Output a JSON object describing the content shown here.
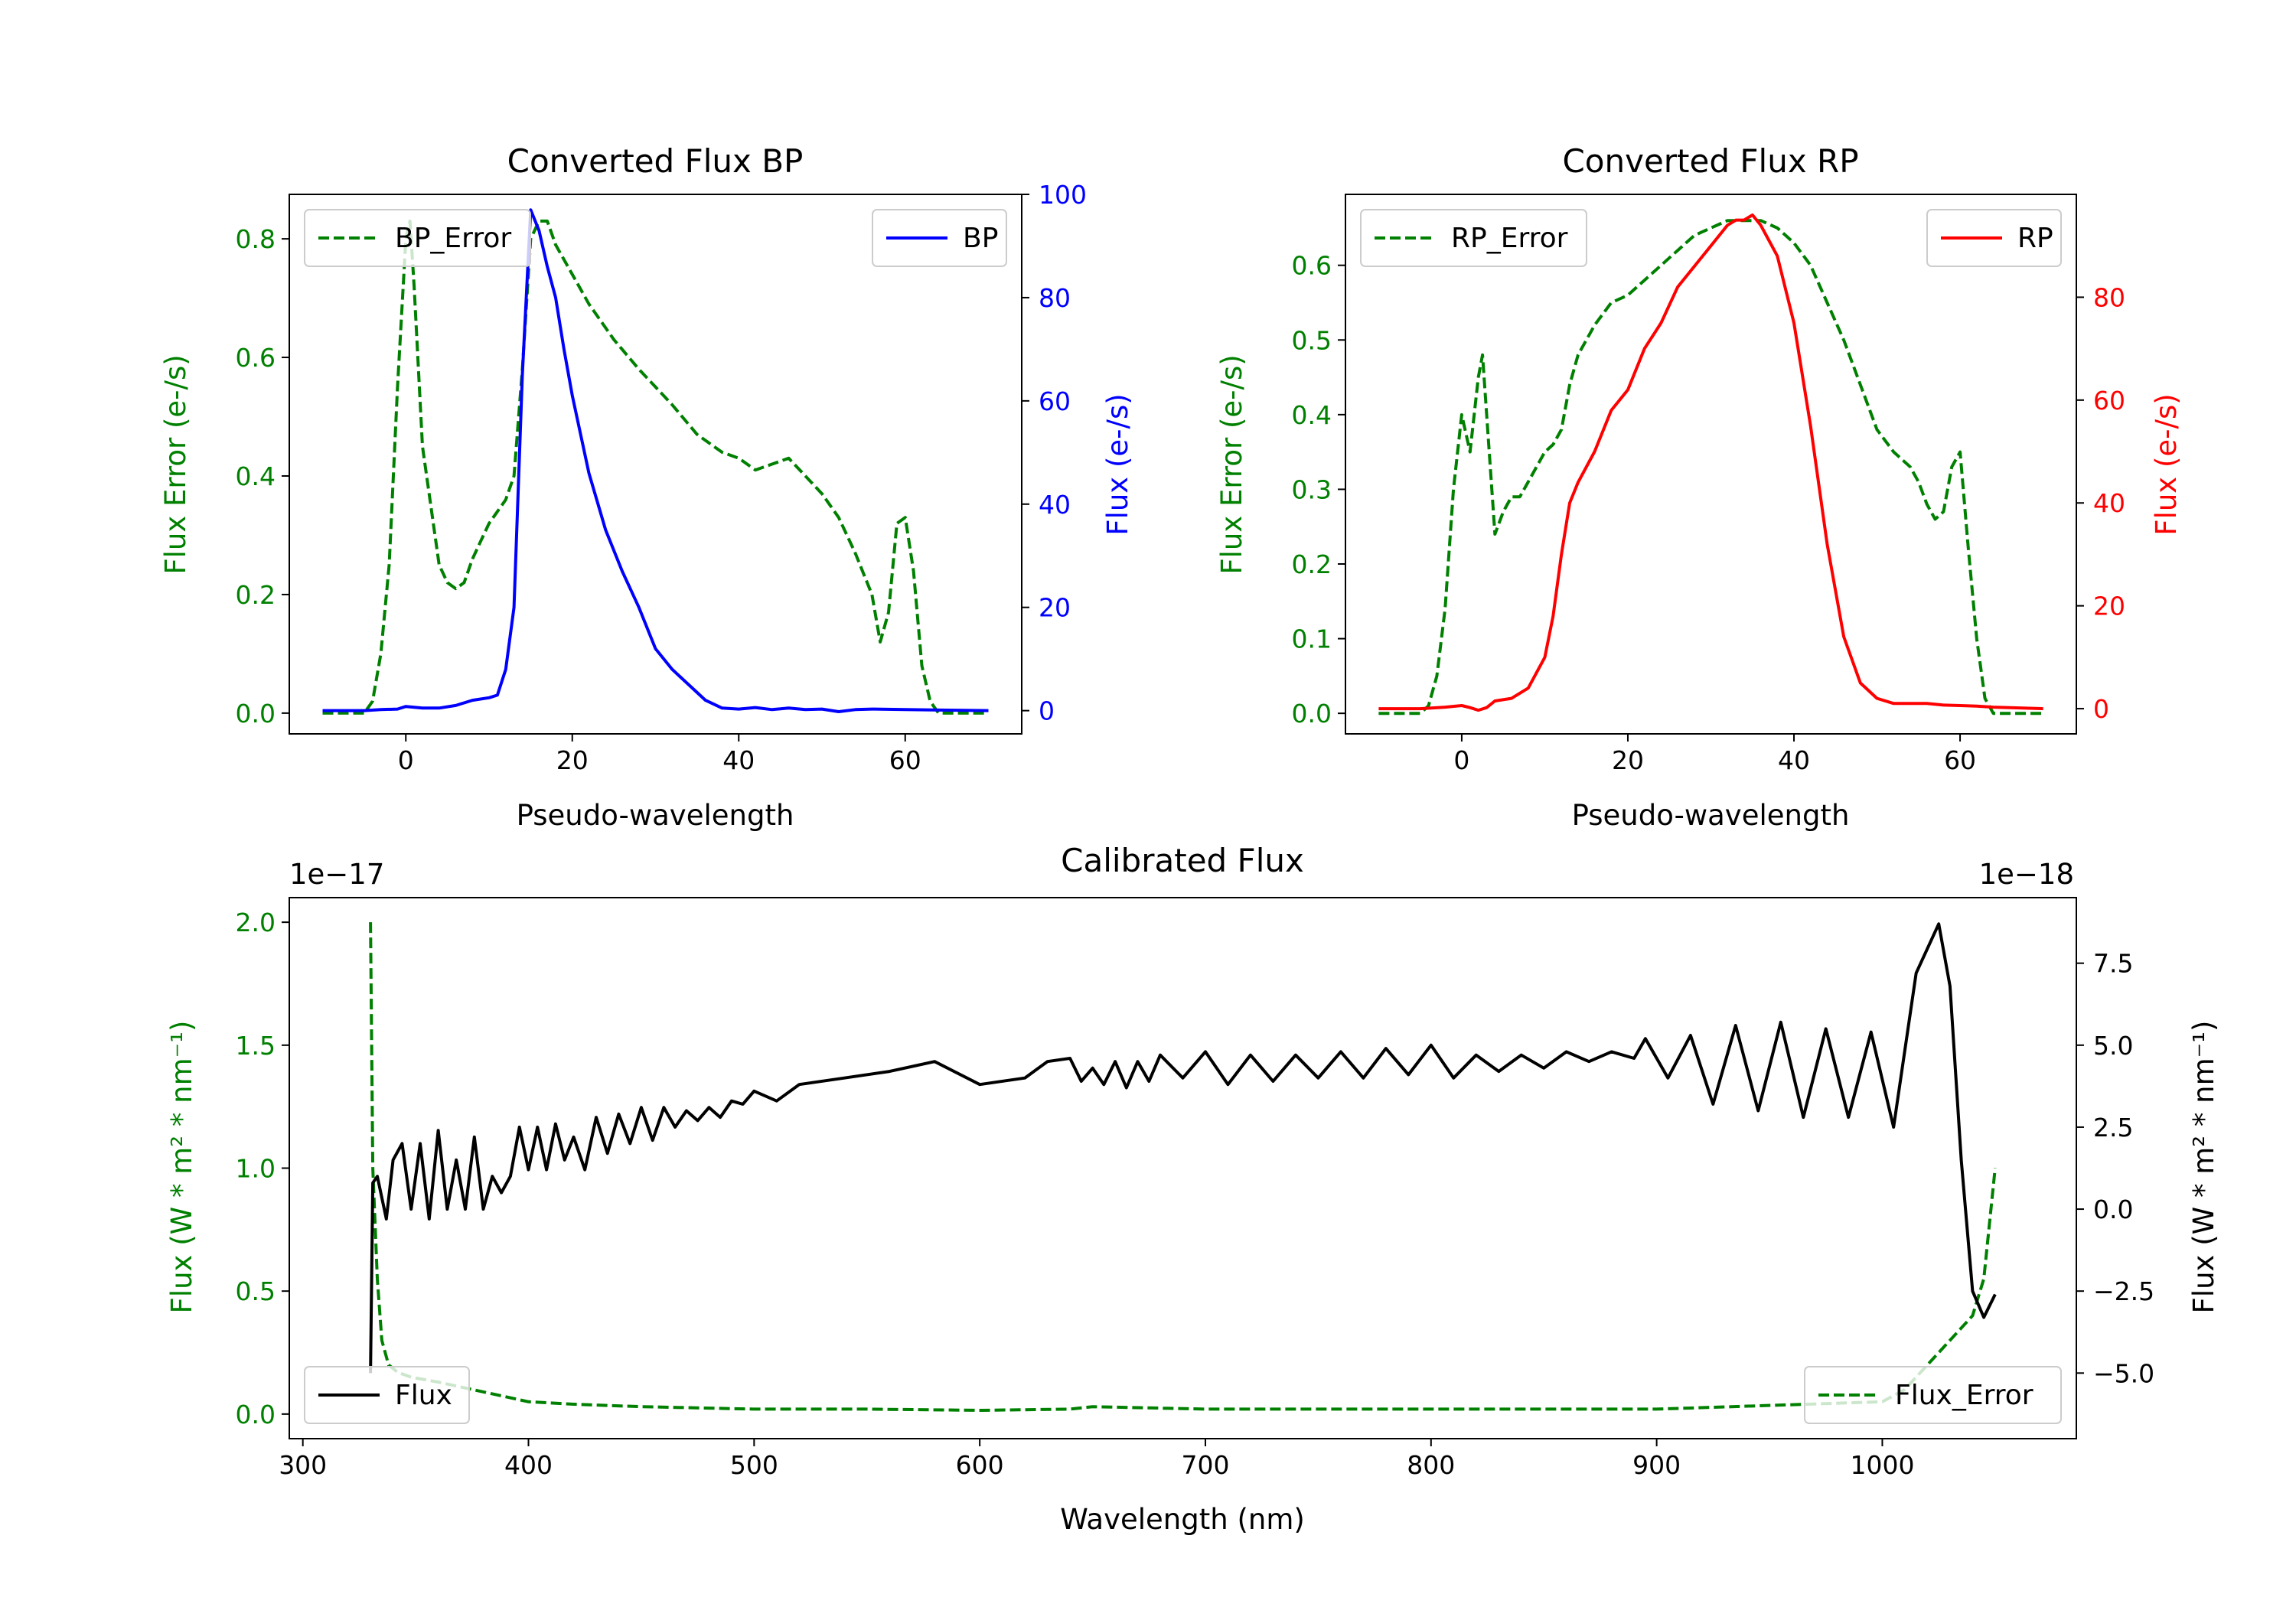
{
  "chart_data": [
    {
      "type": "line",
      "title": "Converted Flux BP",
      "xlabel": "Pseudo-wavelength",
      "xlim": [
        -14,
        74
      ],
      "xticks": [
        0,
        20,
        40,
        60
      ],
      "left_axis": {
        "label": "Flux Error (e-/s)",
        "color": "#008000",
        "lim": [
          -0.035,
          0.875
        ],
        "ticks": [
          0.0,
          0.2,
          0.4,
          0.6,
          0.8
        ],
        "tick_labels": [
          "0.0",
          "0.2",
          "0.4",
          "0.6",
          "0.8"
        ]
      },
      "right_axis": {
        "label": "Flux (e-/s)",
        "color": "#0000ff",
        "lim": [
          -4.5,
          100
        ],
        "ticks": [
          0,
          20,
          40,
          60,
          80,
          100
        ],
        "tick_labels": [
          "0",
          "20",
          "40",
          "60",
          "80",
          "100"
        ]
      },
      "series": [
        {
          "name": "BP_Error",
          "axis": "left",
          "color": "#008000",
          "dash": true,
          "x": [
            -10,
            -5,
            -4,
            -3,
            -2,
            -1,
            0,
            0.5,
            1,
            2,
            3,
            4,
            5,
            6,
            7,
            8,
            9,
            10,
            12,
            13,
            14,
            15,
            16,
            17,
            18,
            20,
            22,
            25,
            28,
            32,
            35,
            38,
            40,
            42,
            44,
            46,
            48,
            50,
            52,
            54,
            56,
            57,
            58,
            59,
            60,
            61,
            62,
            63,
            64,
            66,
            70
          ],
          "values": [
            0,
            0,
            0.02,
            0.1,
            0.25,
            0.55,
            0.8,
            0.83,
            0.72,
            0.45,
            0.35,
            0.25,
            0.22,
            0.21,
            0.22,
            0.26,
            0.29,
            0.32,
            0.36,
            0.4,
            0.58,
            0.8,
            0.83,
            0.83,
            0.79,
            0.74,
            0.69,
            0.63,
            0.58,
            0.52,
            0.47,
            0.44,
            0.43,
            0.41,
            0.42,
            0.43,
            0.4,
            0.37,
            0.33,
            0.27,
            0.2,
            0.12,
            0.17,
            0.32,
            0.33,
            0.24,
            0.08,
            0.02,
            0,
            0,
            0
          ]
        },
        {
          "name": "BP",
          "axis": "right",
          "color": "#0000ff",
          "dash": false,
          "x": [
            -10,
            -5,
            -3,
            -1,
            0,
            2,
            4,
            6,
            8,
            10,
            11,
            12,
            13,
            14,
            15,
            16,
            17,
            18,
            19,
            20,
            22,
            24,
            26,
            28,
            30,
            32,
            34,
            36,
            38,
            40,
            42,
            44,
            46,
            48,
            50,
            52,
            54,
            56,
            60,
            65,
            70
          ],
          "values": [
            0,
            0,
            0.2,
            0.3,
            0.8,
            0.5,
            0.5,
            1,
            2,
            2.5,
            3,
            8,
            20,
            65,
            97,
            93,
            86,
            80,
            70,
            61,
            46,
            35,
            27,
            20,
            12,
            8,
            5,
            2,
            0.5,
            0.3,
            0.6,
            0.2,
            0.5,
            0.2,
            0.3,
            -0.2,
            0.2,
            0.3,
            0.2,
            0.1,
            0
          ]
        }
      ],
      "legend_left": {
        "label": "BP_Error",
        "position": "upper left"
      },
      "legend_right": {
        "label": "BP",
        "position": "upper right"
      }
    },
    {
      "type": "line",
      "title": "Converted Flux RP",
      "xlabel": "Pseudo-wavelength",
      "xlim": [
        -14,
        74
      ],
      "xticks": [
        0,
        20,
        40,
        60
      ],
      "left_axis": {
        "label": "Flux Error (e-/s)",
        "color": "#008000",
        "lim": [
          -0.0275,
          0.695
        ],
        "ticks": [
          0.0,
          0.1,
          0.2,
          0.3,
          0.4,
          0.5,
          0.6
        ],
        "tick_labels": [
          "0.0",
          "0.1",
          "0.2",
          "0.3",
          "0.4",
          "0.5",
          "0.6"
        ]
      },
      "right_axis": {
        "label": "Flux (e-/s)",
        "color": "#ff0000",
        "lim": [
          -4.9,
          100
        ],
        "ticks": [
          0,
          20,
          40,
          60,
          80
        ],
        "tick_labels": [
          "0",
          "20",
          "40",
          "60",
          "80"
        ]
      },
      "series": [
        {
          "name": "RP_Error",
          "axis": "left",
          "color": "#008000",
          "dash": true,
          "x": [
            -10,
            -5,
            -4,
            -3,
            -2,
            -1,
            0,
            1,
            2,
            2.5,
            3,
            4,
            5,
            6,
            7,
            8,
            9,
            10,
            11,
            12,
            13,
            14,
            16,
            18,
            20,
            22,
            24,
            26,
            28,
            30,
            32,
            34,
            36,
            38,
            40,
            42,
            44,
            46,
            48,
            50,
            52,
            54,
            55,
            56,
            57,
            58,
            59,
            60,
            61,
            62,
            63,
            64,
            66,
            70
          ],
          "values": [
            0,
            0,
            0.01,
            0.05,
            0.14,
            0.3,
            0.4,
            0.35,
            0.45,
            0.48,
            0.4,
            0.24,
            0.27,
            0.29,
            0.29,
            0.31,
            0.33,
            0.35,
            0.36,
            0.38,
            0.44,
            0.48,
            0.52,
            0.55,
            0.56,
            0.58,
            0.6,
            0.62,
            0.64,
            0.65,
            0.66,
            0.66,
            0.66,
            0.65,
            0.63,
            0.6,
            0.55,
            0.5,
            0.44,
            0.38,
            0.35,
            0.33,
            0.31,
            0.28,
            0.26,
            0.27,
            0.33,
            0.35,
            0.22,
            0.1,
            0.02,
            0,
            0,
            0
          ]
        },
        {
          "name": "RP",
          "axis": "right",
          "color": "#ff0000",
          "dash": false,
          "x": [
            -10,
            -5,
            -2,
            0,
            1,
            2,
            3,
            4,
            6,
            8,
            10,
            11,
            12,
            13,
            14,
            16,
            18,
            20,
            22,
            24,
            26,
            28,
            30,
            32,
            33,
            34,
            35,
            36,
            37,
            38,
            40,
            42,
            44,
            46,
            48,
            50,
            52,
            54,
            56,
            58,
            60,
            62,
            64,
            66,
            70
          ],
          "values": [
            0,
            0,
            0.3,
            0.6,
            0.2,
            -0.3,
            0.2,
            1.5,
            2,
            4,
            10,
            18,
            30,
            40,
            44,
            50,
            58,
            62,
            70,
            75,
            82,
            86,
            90,
            94,
            95,
            95,
            96,
            94,
            91,
            88,
            75,
            55,
            32,
            14,
            5,
            2,
            1,
            1,
            1,
            0.7,
            0.6,
            0.5,
            0.3,
            0.2,
            0
          ]
        }
      ],
      "legend_left": {
        "label": "RP_Error",
        "position": "upper left"
      },
      "legend_right": {
        "label": "RP",
        "position": "upper right"
      }
    },
    {
      "type": "line",
      "title": "Calibrated Flux",
      "xlabel": "Wavelength (nm)",
      "xlim": [
        294,
        1086
      ],
      "xticks": [
        300,
        400,
        500,
        600,
        700,
        800,
        900,
        1000
      ],
      "left_axis": {
        "label": "Flux (W * m² * nm⁻¹)",
        "color": "#008000",
        "lim": [
          -0.1,
          2.1
        ],
        "ticks": [
          0.0,
          0.5,
          1.0,
          1.5,
          2.0
        ],
        "tick_labels": [
          "0.0",
          "0.5",
          "1.0",
          "1.5",
          "2.0"
        ],
        "offset_text": "1e−17"
      },
      "right_axis": {
        "label": "Flux (W * m² * nm⁻¹)",
        "color": "#000000",
        "lim": [
          -7,
          9.5
        ],
        "ticks": [
          -5,
          -2.5,
          0,
          2.5,
          5,
          7.5
        ],
        "tick_labels": [
          "−5.0",
          "−2.5",
          "0.0",
          "2.5",
          "5.0",
          "7.5"
        ],
        "offset_text": "1e−18"
      },
      "series": [
        {
          "name": "Flux_Error",
          "axis": "left",
          "color": "#008000",
          "dash": true,
          "x": [
            330,
            331,
            333,
            335,
            338,
            342,
            348,
            360,
            380,
            400,
            420,
            450,
            500,
            550,
            600,
            640,
            650,
            700,
            800,
            900,
            1000,
            1010,
            1020,
            1030,
            1040,
            1045,
            1050
          ],
          "values": [
            2.0,
            1.0,
            0.55,
            0.3,
            0.2,
            0.17,
            0.15,
            0.13,
            0.09,
            0.05,
            0.04,
            0.03,
            0.02,
            0.02,
            0.015,
            0.02,
            0.03,
            0.02,
            0.02,
            0.02,
            0.05,
            0.1,
            0.2,
            0.3,
            0.4,
            0.55,
            1.0
          ]
        },
        {
          "name": "Flux",
          "axis": "right",
          "color": "#000000",
          "dash": false,
          "x": [
            330,
            331,
            333,
            337,
            340,
            344,
            348,
            352,
            356,
            360,
            364,
            368,
            372,
            376,
            380,
            384,
            388,
            392,
            396,
            400,
            404,
            408,
            412,
            416,
            420,
            425,
            430,
            435,
            440,
            445,
            450,
            455,
            460,
            465,
            470,
            475,
            480,
            485,
            490,
            495,
            500,
            510,
            520,
            540,
            560,
            580,
            600,
            620,
            630,
            640,
            645,
            650,
            655,
            660,
            665,
            670,
            675,
            680,
            690,
            700,
            710,
            720,
            730,
            740,
            750,
            760,
            770,
            780,
            790,
            800,
            810,
            820,
            830,
            840,
            850,
            860,
            870,
            880,
            890,
            895,
            905,
            915,
            925,
            935,
            945,
            955,
            965,
            975,
            985,
            995,
            1005,
            1015,
            1025,
            1030,
            1035,
            1040,
            1045,
            1050
          ],
          "values": [
            -5,
            0.8,
            1.0,
            -0.3,
            1.5,
            2.0,
            0,
            2.0,
            -0.3,
            2.4,
            0,
            1.5,
            0,
            2.2,
            0,
            1.0,
            0.5,
            1.0,
            2.5,
            1.2,
            2.5,
            1.2,
            2.6,
            1.5,
            2.2,
            1.2,
            2.8,
            1.7,
            2.9,
            2.0,
            3.1,
            2.1,
            3.1,
            2.5,
            3.0,
            2.7,
            3.1,
            2.8,
            3.3,
            3.2,
            3.6,
            3.3,
            3.8,
            4.0,
            4.2,
            4.5,
            3.8,
            4.0,
            4.5,
            4.6,
            3.9,
            4.3,
            3.8,
            4.5,
            3.7,
            4.5,
            3.9,
            4.7,
            4.0,
            4.8,
            3.8,
            4.7,
            3.9,
            4.7,
            4.0,
            4.8,
            4.0,
            4.9,
            4.1,
            5.0,
            4.0,
            4.7,
            4.2,
            4.7,
            4.3,
            4.8,
            4.5,
            4.8,
            4.6,
            5.2,
            4.0,
            5.3,
            3.2,
            5.6,
            3.0,
            5.7,
            2.8,
            5.5,
            2.8,
            5.4,
            2.5,
            7.2,
            8.7,
            6.8,
            1.5,
            -2.5,
            -3.3,
            -2.6
          ]
        }
      ],
      "legend_left": {
        "label": "Flux",
        "position": "lower left"
      },
      "legend_right": {
        "label": "Flux_Error",
        "position": "lower right"
      }
    }
  ]
}
